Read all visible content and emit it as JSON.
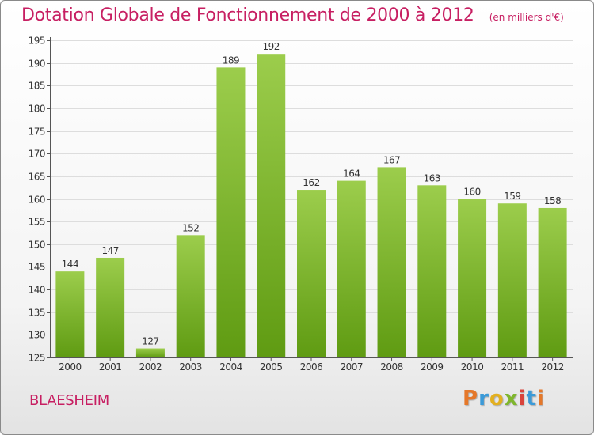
{
  "title": "Dotation Globale de Fonctionnement de 2000 à 2012",
  "unit_note": "(en milliers d'€)",
  "commune": "BLAESHEIM",
  "logo": {
    "letters": [
      "P",
      "r",
      "o",
      "x",
      "i",
      "t",
      "i"
    ],
    "colors": [
      "#e5782a",
      "#3b9ad8",
      "#e3b020",
      "#7fb62d",
      "#d9443c",
      "#3b9ad8",
      "#e5782a"
    ]
  },
  "colors": {
    "title": "#c71f62",
    "bar_top": "#9ccd4c",
    "bar_bottom": "#5f9b12",
    "grid": "#dddddd",
    "axis": "#555555"
  },
  "chart_data": {
    "type": "bar",
    "categories": [
      "2000",
      "2001",
      "2002",
      "2003",
      "2004",
      "2005",
      "2006",
      "2007",
      "2008",
      "2009",
      "2010",
      "2011",
      "2012"
    ],
    "values": [
      144,
      147,
      127,
      152,
      189,
      192,
      162,
      164,
      167,
      163,
      160,
      159,
      158
    ],
    "ylim": [
      125,
      195
    ],
    "yticks": [
      125,
      130,
      135,
      140,
      145,
      150,
      155,
      160,
      165,
      170,
      175,
      180,
      185,
      190,
      195
    ],
    "grid": true,
    "data_labels": true
  }
}
